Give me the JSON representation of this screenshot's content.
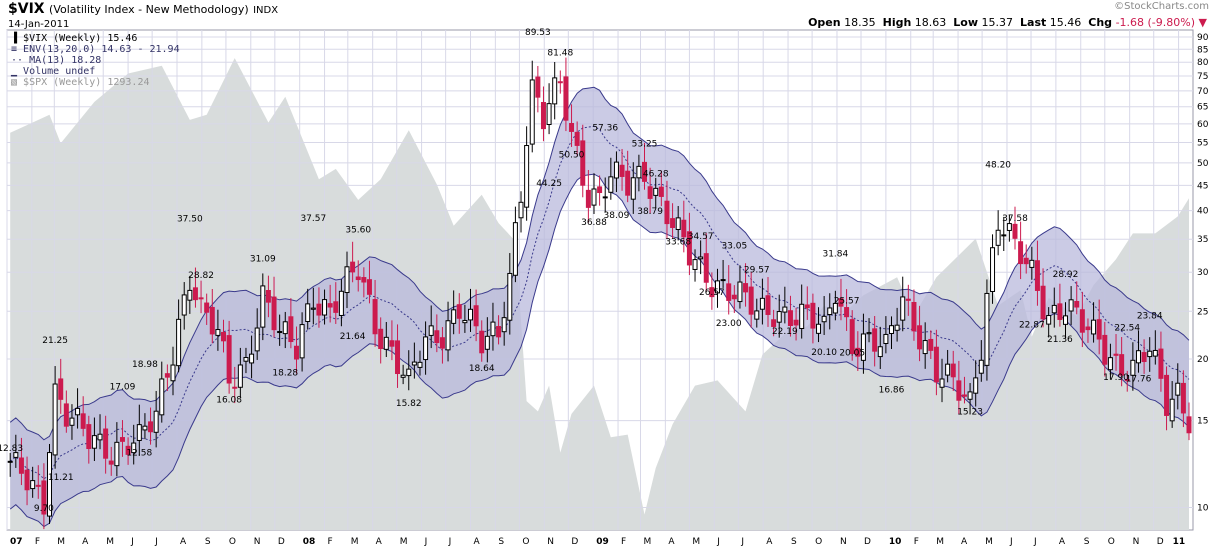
{
  "header": {
    "symbol": "$VIX",
    "name": "(Volatility Index - New Methodology)",
    "exchange": "INDX",
    "date": "14-Jan-2011",
    "quote": {
      "open_label": "Open",
      "open": "18.35",
      "high_label": "High",
      "high": "18.63",
      "low_label": "Low",
      "low": "15.37",
      "last_label": "Last",
      "last": "15.46",
      "chg_label": "Chg",
      "chg": "-1.68 (-9.80%)"
    },
    "watermark": "©StockCharts.com"
  },
  "legend": [
    {
      "icon": "candlestick-icon",
      "text": "$VIX (Weekly) 15.46",
      "color": "#000000"
    },
    {
      "icon": "envelope-icon",
      "text": "ENV(13,20.0) 14.63 - 21.94",
      "color": "#333366"
    },
    {
      "icon": "moving-average-icon",
      "text": "MA(13) 18.28",
      "color": "#333366"
    },
    {
      "icon": "volume-icon",
      "text": "Volume undef",
      "color": "#333366"
    },
    {
      "icon": "spx-area-icon",
      "text": "$SPX (Weekly) 1293.24",
      "color": "#999999"
    }
  ],
  "colors": {
    "up": "#000000",
    "down": "#cc1b4e",
    "envelope_fill": "#b9b9dc",
    "envelope_line": "#3a3a8c",
    "spx_fill": "#d8dcdc",
    "grid": "#d8d8e8"
  },
  "chart_data": {
    "type": "candlestick",
    "y_scale": "log",
    "ylim": [
      9,
      93
    ],
    "x_range": [
      "2007-01-01",
      "2011-01-14"
    ],
    "y_ticks": [
      10,
      15,
      20,
      25,
      30,
      35,
      40,
      45,
      50,
      55,
      60,
      65,
      70,
      75,
      80,
      85,
      90
    ],
    "x_tick_labels": [
      "07",
      "F",
      "M",
      "A",
      "M",
      "J",
      "J",
      "A",
      "S",
      "O",
      "N",
      "D",
      "08",
      "F",
      "M",
      "A",
      "M",
      "J",
      "J",
      "A",
      "S",
      "O",
      "N",
      "D",
      "09",
      "F",
      "M",
      "A",
      "M",
      "J",
      "J",
      "A",
      "S",
      "O",
      "N",
      "D",
      "10",
      "F",
      "M",
      "A",
      "M",
      "J",
      "J",
      "A",
      "S",
      "O",
      "N",
      "D",
      "11"
    ],
    "annotations": [
      {
        "date": "2007-01-05",
        "value": 12.83,
        "text": "12.83"
      },
      {
        "date": "2007-02-16",
        "value": 9.7,
        "text": "9.70"
      },
      {
        "date": "2007-03-02",
        "value": 21.25,
        "text": "21.25"
      },
      {
        "date": "2007-03-09",
        "value": 11.21,
        "text": "11.21"
      },
      {
        "date": "2007-05-25",
        "value": 17.09,
        "text": "17.09"
      },
      {
        "date": "2007-06-15",
        "value": 12.58,
        "text": "12.58"
      },
      {
        "date": "2007-06-22",
        "value": 18.98,
        "text": "18.98"
      },
      {
        "date": "2007-08-17",
        "value": 37.5,
        "text": "37.50"
      },
      {
        "date": "2007-08-31",
        "value": 28.82,
        "text": "28.82"
      },
      {
        "date": "2007-10-05",
        "value": 16.08,
        "text": "16.08"
      },
      {
        "date": "2007-11-16",
        "value": 31.09,
        "text": "31.09"
      },
      {
        "date": "2007-12-14",
        "value": 18.28,
        "text": "18.28"
      },
      {
        "date": "2008-01-18",
        "value": 37.57,
        "text": "37.57"
      },
      {
        "date": "2008-03-14",
        "value": 35.6,
        "text": "35.60"
      },
      {
        "date": "2008-03-07",
        "value": 21.64,
        "text": "21.64"
      },
      {
        "date": "2008-05-16",
        "value": 15.82,
        "text": "15.82"
      },
      {
        "date": "2008-08-15",
        "value": 18.64,
        "text": "18.64"
      },
      {
        "date": "2008-10-24",
        "value": 89.53,
        "text": "89.53"
      },
      {
        "date": "2008-11-21",
        "value": 81.48,
        "text": "81.48"
      },
      {
        "date": "2008-11-07",
        "value": 44.25,
        "text": "44.25"
      },
      {
        "date": "2008-12-05",
        "value": 50.5,
        "text": "50.50"
      },
      {
        "date": "2009-01-02",
        "value": 36.88,
        "text": "36.88"
      },
      {
        "date": "2009-01-16",
        "value": 57.36,
        "text": "57.36"
      },
      {
        "date": "2009-01-30",
        "value": 38.09,
        "text": "38.09"
      },
      {
        "date": "2009-03-06",
        "value": 53.25,
        "text": "53.25"
      },
      {
        "date": "2009-03-13",
        "value": 38.79,
        "text": "38.79"
      },
      {
        "date": "2009-03-20",
        "value": 46.28,
        "text": "46.28"
      },
      {
        "date": "2009-04-17",
        "value": 33.68,
        "text": "33.68"
      },
      {
        "date": "2009-05-15",
        "value": 34.57,
        "text": "34.57"
      },
      {
        "date": "2009-05-29",
        "value": 26.57,
        "text": "26.57"
      },
      {
        "date": "2009-06-26",
        "value": 33.05,
        "text": "33.05"
      },
      {
        "date": "2009-06-19",
        "value": 23.0,
        "text": "23.00"
      },
      {
        "date": "2009-07-24",
        "value": 29.57,
        "text": "29.57"
      },
      {
        "date": "2009-08-28",
        "value": 22.19,
        "text": "22.19"
      },
      {
        "date": "2009-10-30",
        "value": 31.84,
        "text": "31.84"
      },
      {
        "date": "2009-10-16",
        "value": 20.1,
        "text": "20.10"
      },
      {
        "date": "2009-11-13",
        "value": 25.57,
        "text": "25.57"
      },
      {
        "date": "2009-11-20",
        "value": 20.05,
        "text": "20.05"
      },
      {
        "date": "2010-01-08",
        "value": 16.86,
        "text": "16.86"
      },
      {
        "date": "2010-04-16",
        "value": 15.23,
        "text": "15.23"
      },
      {
        "date": "2010-05-21",
        "value": 48.2,
        "text": "48.20"
      },
      {
        "date": "2010-06-11",
        "value": 37.58,
        "text": "37.58"
      },
      {
        "date": "2010-07-02",
        "value": 22.87,
        "text": "22.87"
      },
      {
        "date": "2010-08-13",
        "value": 28.92,
        "text": "28.92"
      },
      {
        "date": "2010-08-06",
        "value": 21.36,
        "text": "21.36"
      },
      {
        "date": "2010-10-15",
        "value": 17.9,
        "text": "17.90"
      },
      {
        "date": "2010-10-29",
        "value": 22.54,
        "text": "22.54"
      },
      {
        "date": "2010-11-12",
        "value": 17.76,
        "text": "17.76"
      },
      {
        "date": "2010-11-26",
        "value": 23.84,
        "text": "23.84"
      }
    ],
    "vix_anchors": [
      [
        "2007-01-05",
        12.0
      ],
      [
        "2007-02-02",
        11.0
      ],
      [
        "2007-02-16",
        10.5
      ],
      [
        "2007-03-02",
        17.5
      ],
      [
        "2007-03-16",
        15.5
      ],
      [
        "2007-04-13",
        13.5
      ],
      [
        "2007-05-11",
        13.3
      ],
      [
        "2007-06-01",
        13.8
      ],
      [
        "2007-06-15",
        13.6
      ],
      [
        "2007-07-06",
        15.0
      ],
      [
        "2007-07-27",
        21.0
      ],
      [
        "2007-08-17",
        30.0
      ],
      [
        "2007-08-31",
        25.0
      ],
      [
        "2007-09-21",
        22.0
      ],
      [
        "2007-10-05",
        18.0
      ],
      [
        "2007-10-26",
        20.0
      ],
      [
        "2007-11-16",
        27.0
      ],
      [
        "2007-12-07",
        22.0
      ],
      [
        "2007-12-28",
        21.0
      ],
      [
        "2008-01-18",
        27.5
      ],
      [
        "2008-02-08",
        25.0
      ],
      [
        "2008-03-14",
        30.0
      ],
      [
        "2008-04-04",
        24.0
      ],
      [
        "2008-04-25",
        21.0
      ],
      [
        "2008-05-16",
        17.5
      ],
      [
        "2008-06-06",
        21.5
      ],
      [
        "2008-06-27",
        23.0
      ],
      [
        "2008-07-18",
        26.0
      ],
      [
        "2008-08-15",
        21.0
      ],
      [
        "2008-09-05",
        22.5
      ],
      [
        "2008-09-19",
        30.0
      ],
      [
        "2008-10-03",
        45.0
      ],
      [
        "2008-10-17",
        70.0
      ],
      [
        "2008-10-31",
        60.0
      ],
      [
        "2008-11-21",
        72.0
      ],
      [
        "2008-12-05",
        58.0
      ],
      [
        "2008-12-26",
        44.0
      ],
      [
        "2009-01-09",
        42.0
      ],
      [
        "2009-01-23",
        46.0
      ],
      [
        "2009-02-13",
        45.0
      ],
      [
        "2009-03-06",
        49.0
      ],
      [
        "2009-03-20",
        44.0
      ],
      [
        "2009-04-10",
        37.0
      ],
      [
        "2009-05-01",
        32.0
      ],
      [
        "2009-05-22",
        30.0
      ],
      [
        "2009-06-12",
        28.5
      ],
      [
        "2009-07-03",
        26.5
      ],
      [
        "2009-07-24",
        24.5
      ],
      [
        "2009-08-14",
        25.5
      ],
      [
        "2009-09-04",
        25.0
      ],
      [
        "2009-09-25",
        24.0
      ],
      [
        "2009-10-16",
        22.5
      ],
      [
        "2009-10-30",
        28.0
      ],
      [
        "2009-11-20",
        22.0
      ],
      [
        "2009-12-11",
        21.5
      ],
      [
        "2010-01-01",
        20.5
      ],
      [
        "2010-01-22",
        27.0
      ],
      [
        "2010-02-12",
        23.0
      ],
      [
        "2010-03-05",
        18.5
      ],
      [
        "2010-03-26",
        17.5
      ],
      [
        "2010-04-16",
        16.5
      ],
      [
        "2010-04-30",
        22.0
      ],
      [
        "2010-05-21",
        38.0
      ],
      [
        "2010-06-11",
        33.0
      ],
      [
        "2010-07-02",
        30.0
      ],
      [
        "2010-07-23",
        25.0
      ],
      [
        "2010-08-13",
        25.5
      ],
      [
        "2010-09-03",
        23.0
      ],
      [
        "2010-09-24",
        22.0
      ],
      [
        "2010-10-15",
        20.0
      ],
      [
        "2010-11-05",
        19.0
      ],
      [
        "2010-11-26",
        20.5
      ],
      [
        "2010-12-17",
        16.5
      ],
      [
        "2010-12-31",
        17.5
      ],
      [
        "2011-01-14",
        15.46
      ]
    ],
    "spx_anchors": [
      [
        "2007-01-05",
        1420
      ],
      [
        "2007-02-23",
        1455
      ],
      [
        "2007-03-09",
        1400
      ],
      [
        "2007-04-20",
        1480
      ],
      [
        "2007-06-01",
        1535
      ],
      [
        "2007-07-13",
        1550
      ],
      [
        "2007-08-17",
        1445
      ],
      [
        "2007-09-07",
        1455
      ],
      [
        "2007-10-12",
        1565
      ],
      [
        "2007-11-23",
        1440
      ],
      [
        "2007-12-14",
        1490
      ],
      [
        "2008-01-04",
        1410
      ],
      [
        "2008-01-25",
        1330
      ],
      [
        "2008-02-15",
        1350
      ],
      [
        "2008-03-14",
        1290
      ],
      [
        "2008-04-11",
        1330
      ],
      [
        "2008-05-16",
        1425
      ],
      [
        "2008-06-20",
        1320
      ],
      [
        "2008-07-11",
        1240
      ],
      [
        "2008-08-15",
        1300
      ],
      [
        "2008-09-05",
        1245
      ],
      [
        "2008-09-26",
        1210
      ],
      [
        "2008-10-10",
        900
      ],
      [
        "2008-10-24",
        880
      ],
      [
        "2008-11-07",
        930
      ],
      [
        "2008-11-21",
        800
      ],
      [
        "2008-12-05",
        875
      ],
      [
        "2009-01-02",
        930
      ],
      [
        "2009-01-23",
        830
      ],
      [
        "2009-02-13",
        835
      ],
      [
        "2009-03-06",
        680
      ],
      [
        "2009-03-20",
        770
      ],
      [
        "2009-04-10",
        855
      ],
      [
        "2009-05-08",
        930
      ],
      [
        "2009-06-05",
        940
      ],
      [
        "2009-07-10",
        880
      ],
      [
        "2009-07-31",
        990
      ],
      [
        "2009-08-28",
        1030
      ],
      [
        "2009-09-25",
        1045
      ],
      [
        "2009-10-16",
        1085
      ],
      [
        "2009-11-06",
        1065
      ],
      [
        "2009-12-04",
        1105
      ],
      [
        "2010-01-15",
        1140
      ],
      [
        "2010-02-05",
        1065
      ],
      [
        "2010-03-05",
        1140
      ],
      [
        "2010-04-23",
        1215
      ],
      [
        "2010-05-21",
        1085
      ],
      [
        "2010-06-18",
        1115
      ],
      [
        "2010-07-02",
        1025
      ],
      [
        "2010-07-23",
        1100
      ],
      [
        "2010-08-27",
        1065
      ],
      [
        "2010-09-17",
        1125
      ],
      [
        "2010-10-15",
        1175
      ],
      [
        "2010-11-05",
        1225
      ],
      [
        "2010-12-03",
        1225
      ],
      [
        "2010-12-31",
        1258
      ],
      [
        "2011-01-14",
        1293
      ]
    ],
    "spx_axis_range": [
      650,
      1600
    ]
  }
}
